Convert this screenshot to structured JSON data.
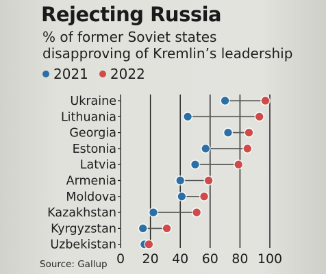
{
  "title": "Rejecting Russia",
  "subtitle": "% of former Soviet states\ndisapproving of Kremlin’s leadership",
  "source": "Source: Gallup",
  "colors": {
    "series_2021": "#2a6fa6",
    "series_2022": "#cf4a48",
    "connector": "#555555",
    "grid": "#1a1a1a"
  },
  "chart_data": {
    "type": "scatter",
    "categories": [
      "Ukraine",
      "Lithuania",
      "Georgia",
      "Estonia",
      "Latvia",
      "Armenia",
      "Moldova",
      "Kazakhstan",
      "Kyrgyzstan",
      "Uzbekistan"
    ],
    "series": [
      {
        "name": "2021",
        "values": [
          70,
          45,
          72,
          57,
          50,
          40,
          41,
          22,
          15,
          16
        ]
      },
      {
        "name": "2022",
        "values": [
          97,
          93,
          86,
          85,
          79,
          59,
          56,
          51,
          31,
          19
        ]
      }
    ],
    "xlim": [
      0,
      100
    ],
    "xticks": [
      0,
      20,
      40,
      60,
      80,
      100
    ],
    "grid": true,
    "legend": "top-left"
  }
}
